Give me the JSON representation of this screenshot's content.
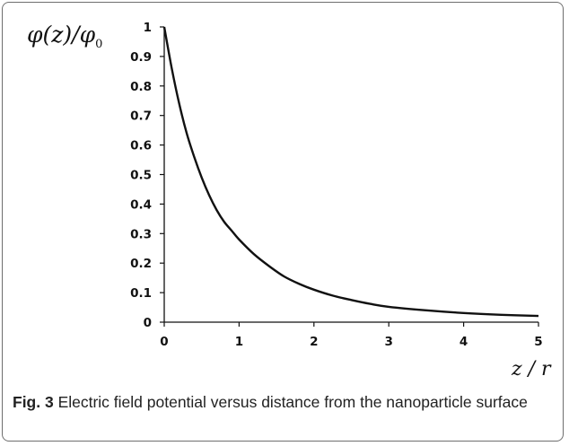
{
  "chart_data": {
    "type": "line",
    "ylabel": "φ(z)/φ₀",
    "xlabel": "z/r",
    "xlim": [
      0,
      5
    ],
    "ylim": [
      0,
      1
    ],
    "x_ticks": [
      "0",
      "1",
      "2",
      "3",
      "4",
      "5"
    ],
    "y_ticks": [
      "0",
      "0.1",
      "0.2",
      "0.3",
      "0.4",
      "0.5",
      "0.6",
      "0.7",
      "0.8",
      "0.9",
      "1"
    ],
    "grid": false,
    "series": [
      {
        "x": [
          0,
          0.1,
          0.2,
          0.3,
          0.4,
          0.5,
          0.6,
          0.7,
          0.8,
          0.9,
          1.0,
          1.2,
          1.4,
          1.6,
          1.8,
          2.0,
          2.25,
          2.5,
          2.75,
          3.0,
          3.5,
          4.0,
          4.5,
          5.0
        ],
        "y": [
          1.0,
          0.86,
          0.74,
          0.64,
          0.56,
          0.49,
          0.43,
          0.38,
          0.34,
          0.31,
          0.28,
          0.23,
          0.19,
          0.155,
          0.13,
          0.11,
          0.09,
          0.075,
          0.062,
          0.052,
          0.04,
          0.031,
          0.025,
          0.021
        ]
      }
    ]
  },
  "caption": {
    "label": "Fig. 3",
    "text": " Electric field potential versus distance from the nanoparticle surface"
  }
}
